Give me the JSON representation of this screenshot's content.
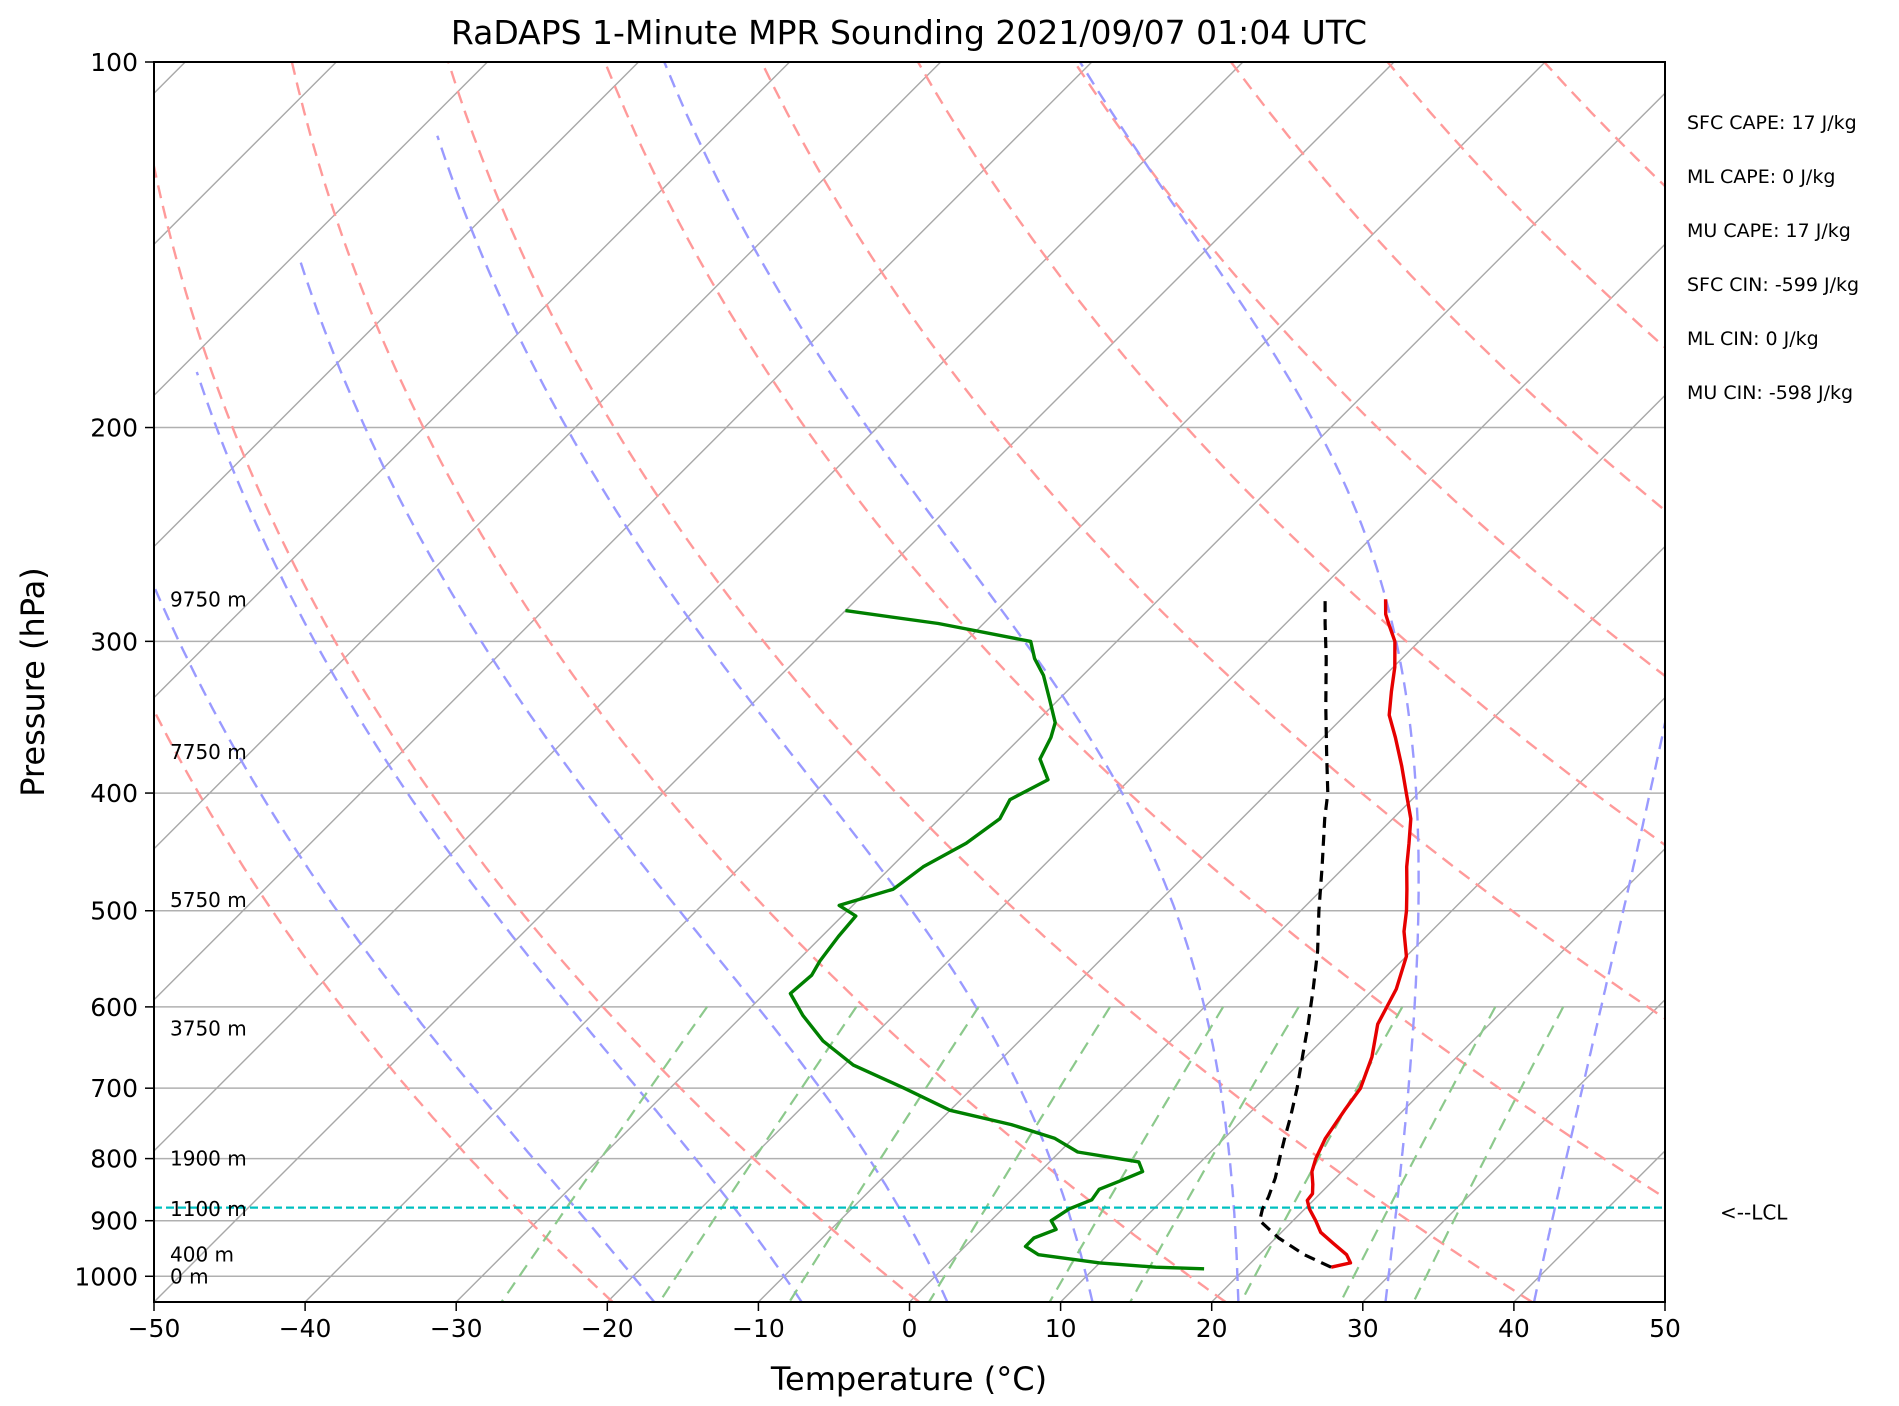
{
  "chart_data": {
    "type": "line",
    "title": "RaDAPS 1-Minute MPR Sounding 2021/09/07 01:04 UTC",
    "xlabel": "Temperature (°C)",
    "ylabel": "Pressure (hPa)",
    "xlim": [
      -50,
      50
    ],
    "ylim": [
      1050,
      100
    ],
    "y_scale": "log",
    "skew": "skew-T log-P",
    "x_ticks": [
      "−50",
      "−40",
      "−30",
      "−20",
      "−10",
      "0",
      "10",
      "20",
      "30",
      "40",
      "50"
    ],
    "y_ticks": [
      {
        "p": 100,
        "label": "100"
      },
      {
        "p": 200,
        "label": "200"
      },
      {
        "p": 300,
        "label": "300"
      },
      {
        "p": 400,
        "label": "400"
      },
      {
        "p": 500,
        "label": "500"
      },
      {
        "p": 600,
        "label": "600"
      },
      {
        "p": 700,
        "label": "700"
      },
      {
        "p": 800,
        "label": "800"
      },
      {
        "p": 900,
        "label": "900"
      },
      {
        "p": 1000,
        "label": "1000"
      }
    ],
    "grid": true,
    "series": [
      {
        "color": "#e60000",
        "points": [
          [
            983,
            25.6
          ],
          [
            975,
            26.6
          ],
          [
            960,
            25.8
          ],
          [
            940,
            24.2
          ],
          [
            920,
            22.6
          ],
          [
            900,
            21.5
          ],
          [
            880,
            20.3
          ],
          [
            866,
            19.6
          ],
          [
            855,
            19.5
          ],
          [
            840,
            18.9
          ],
          [
            820,
            18.0
          ],
          [
            800,
            17.4
          ],
          [
            770,
            16.7
          ],
          [
            730,
            16.1
          ],
          [
            700,
            15.7
          ],
          [
            660,
            14.4
          ],
          [
            620,
            12.6
          ],
          [
            580,
            11.5
          ],
          [
            545,
            10.0
          ],
          [
            520,
            8.2
          ],
          [
            500,
            7.0
          ],
          [
            480,
            5.6
          ],
          [
            460,
            4.1
          ],
          [
            440,
            2.7
          ],
          [
            420,
            1.2
          ],
          [
            400,
            -0.8
          ],
          [
            380,
            -2.9
          ],
          [
            360,
            -5.2
          ],
          [
            345,
            -7.1
          ],
          [
            330,
            -8.5
          ],
          [
            315,
            -9.9
          ],
          [
            300,
            -11.6
          ],
          [
            290,
            -13.2
          ],
          [
            285,
            -14.0
          ],
          [
            277,
            -15.0
          ]
        ]
      },
      {
        "color": "#008000",
        "points": [
          [
            986,
            17.3
          ],
          [
            983,
            14.0
          ],
          [
            975,
            10.0
          ],
          [
            960,
            5.4
          ],
          [
            945,
            4.0
          ],
          [
            930,
            4.0
          ],
          [
            915,
            4.9
          ],
          [
            900,
            4.0
          ],
          [
            880,
            4.4
          ],
          [
            865,
            5.3
          ],
          [
            848,
            5.1
          ],
          [
            835,
            5.9
          ],
          [
            820,
            6.8
          ],
          [
            805,
            5.9
          ],
          [
            790,
            1.2
          ],
          [
            770,
            -1.2
          ],
          [
            750,
            -5.0
          ],
          [
            730,
            -10.0
          ],
          [
            700,
            -14.5
          ],
          [
            670,
            -19.4
          ],
          [
            640,
            -23.0
          ],
          [
            610,
            -26.0
          ],
          [
            585,
            -28.3
          ],
          [
            565,
            -28.1
          ],
          [
            550,
            -28.5
          ],
          [
            525,
            -28.9
          ],
          [
            505,
            -29.1
          ],
          [
            495,
            -30.9
          ],
          [
            480,
            -28.4
          ],
          [
            460,
            -27.9
          ],
          [
            440,
            -26.6
          ],
          [
            420,
            -26.0
          ],
          [
            405,
            -26.6
          ],
          [
            390,
            -25.4
          ],
          [
            375,
            -27.3
          ],
          [
            360,
            -28.0
          ],
          [
            350,
            -28.7
          ],
          [
            335,
            -30.6
          ],
          [
            320,
            -32.6
          ],
          [
            310,
            -34.3
          ],
          [
            300,
            -35.7
          ],
          [
            290,
            -43.0
          ],
          [
            283,
            -50.0
          ]
        ]
      },
      {
        "color": "#000000",
        "style": "dashed",
        "points": [
          [
            983,
            25.6
          ],
          [
            960,
            23.0
          ],
          [
            930,
            20.2
          ],
          [
            900,
            17.8
          ],
          [
            880,
            17.2
          ],
          [
            860,
            16.8
          ],
          [
            830,
            16.0
          ],
          [
            800,
            15.0
          ],
          [
            770,
            14.0
          ],
          [
            740,
            13.0
          ],
          [
            700,
            11.5
          ],
          [
            660,
            9.8
          ],
          [
            620,
            8.0
          ],
          [
            580,
            6.0
          ],
          [
            540,
            3.8
          ],
          [
            500,
            1.2
          ],
          [
            460,
            -1.5
          ],
          [
            420,
            -4.5
          ],
          [
            400,
            -6.0
          ],
          [
            370,
            -8.8
          ],
          [
            340,
            -11.8
          ],
          [
            310,
            -15.0
          ],
          [
            290,
            -17.4
          ],
          [
            277,
            -19.0
          ]
        ]
      }
    ],
    "dry_adiabats_theta_K": [
      250,
      270,
      290,
      310,
      330,
      350,
      370,
      390,
      410,
      430,
      450,
      470
    ],
    "moist_adiabats_start_C": [
      -20,
      -10,
      0,
      10,
      20,
      30,
      40
    ],
    "mixing_ratio_lines_gkg": [
      0.4,
      1,
      2,
      4,
      7,
      10,
      16,
      24,
      32
    ],
    "lcl_pressure_hPa": 878,
    "lcl_label": "<--LCL",
    "height_labels": [
      {
        "p": 1000,
        "label": "0 m"
      },
      {
        "p": 960,
        "label": "400 m"
      },
      {
        "p": 880,
        "label": "1100 m"
      },
      {
        "p": 800,
        "label": "1900 m"
      },
      {
        "p": 625,
        "label": "3750 m"
      },
      {
        "p": 490,
        "label": "5750 m"
      },
      {
        "p": 370,
        "label": "7750 m"
      },
      {
        "p": 277,
        "label": "9750 m"
      }
    ],
    "indices": [
      "SFC CAPE: 17 J/kg",
      "ML CAPE: 0 J/kg",
      "MU CAPE: 17 J/kg",
      "SFC CIN: -599 J/kg",
      "ML CIN: 0 J/kg",
      "MU CIN: -598 J/kg"
    ],
    "colors": {
      "isobar_grid": "#b0b0b0",
      "isotherm": "#a8a8a8",
      "dry_adiabat": "#ff9a9a",
      "moist_adiabat": "#9a9aff",
      "mixing_ratio": "#8cc98c",
      "lcl": "#00c0c0"
    }
  }
}
